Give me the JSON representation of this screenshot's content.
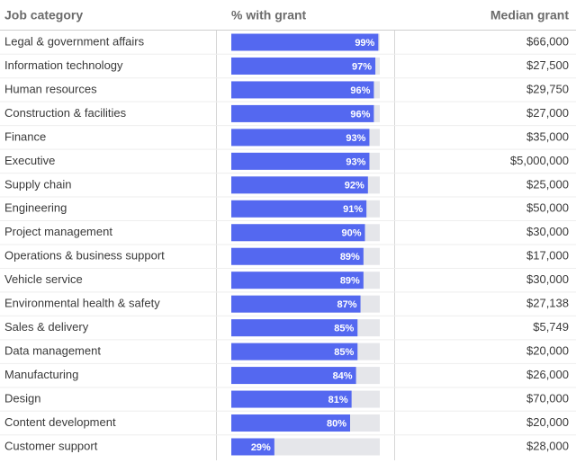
{
  "chart_data": {
    "type": "bar",
    "columns": [
      "Job category",
      "% with grant",
      "Median grant"
    ],
    "categories": [
      "Legal & government affairs",
      "Information technology",
      "Human resources",
      "Construction & facilities",
      "Finance",
      "Executive",
      "Supply chain",
      "Engineering",
      "Project management",
      "Operations & business support",
      "Vehicle service",
      "Environmental health & safety",
      "Sales & delivery",
      "Data management",
      "Manufacturing",
      "Design",
      "Content development",
      "Customer support"
    ],
    "values": [
      99,
      97,
      96,
      96,
      93,
      93,
      92,
      91,
      90,
      89,
      89,
      87,
      85,
      85,
      84,
      81,
      80,
      29
    ],
    "value_labels": [
      "99%",
      "97%",
      "96%",
      "96%",
      "93%",
      "93%",
      "92%",
      "91%",
      "90%",
      "89%",
      "89%",
      "87%",
      "85%",
      "85%",
      "84%",
      "81%",
      "80%",
      "29%"
    ],
    "median_grant": [
      "$66,000",
      "$27,500",
      "$29,750",
      "$27,000",
      "$35,000",
      "$5,000,000",
      "$25,000",
      "$50,000",
      "$30,000",
      "$17,000",
      "$30,000",
      "$27,138",
      "$5,749",
      "$20,000",
      "$26,000",
      "$70,000",
      "$20,000",
      "$28,000"
    ],
    "xlim": [
      0,
      100
    ],
    "color": "#5468f0",
    "track_color": "#e5e6ea"
  }
}
